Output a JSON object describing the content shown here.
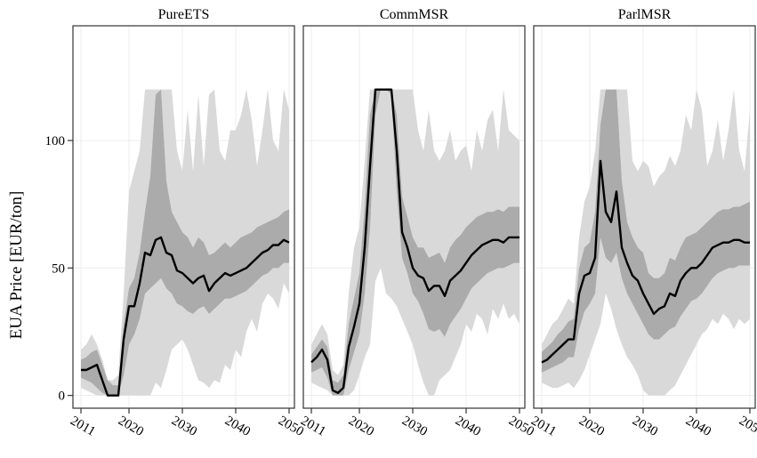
{
  "chart_data": {
    "type": "line",
    "ylabel": "EUA Price [EUR/ton]",
    "ylim": [
      -5,
      145
    ],
    "xlim": [
      2009.5,
      2051
    ],
    "x_ticks": [
      2011,
      2020,
      2030,
      2040,
      2050
    ],
    "y_ticks": [
      0,
      50,
      100
    ],
    "grid": true,
    "colors": {
      "outer_band": "#d9d9d9",
      "inner_band": "#ababab",
      "median": "#000000",
      "frame": "#333333",
      "grid": "#ececec"
    },
    "x": [
      2011,
      2012,
      2013,
      2014,
      2015,
      2016,
      2017,
      2018,
      2019,
      2020,
      2021,
      2022,
      2023,
      2024,
      2025,
      2026,
      2027,
      2028,
      2029,
      2030,
      2031,
      2032,
      2033,
      2034,
      2035,
      2036,
      2037,
      2038,
      2039,
      2040,
      2041,
      2042,
      2043,
      2044,
      2045,
      2046,
      2047,
      2048,
      2049,
      2050
    ],
    "panels": [
      {
        "title": "PureETS",
        "median": [
          10,
          10,
          11,
          12,
          6,
          0,
          0,
          0,
          22,
          35,
          35,
          44,
          56,
          55,
          61,
          62,
          56,
          55,
          49,
          48,
          46,
          44,
          46,
          47,
          41,
          44,
          46,
          48,
          47,
          48,
          49,
          50,
          52,
          54,
          56,
          57,
          59,
          59,
          61,
          60
        ],
        "inner_lo": [
          7,
          6,
          5,
          3,
          1,
          0,
          0,
          0,
          8,
          20,
          24,
          30,
          40,
          42,
          44,
          46,
          42,
          40,
          36,
          35,
          33,
          32,
          34,
          35,
          32,
          34,
          36,
          38,
          38,
          39,
          40,
          41,
          43,
          45,
          47,
          48,
          50,
          50,
          52,
          52
        ],
        "inner_hi": [
          14,
          15,
          17,
          18,
          12,
          6,
          4,
          4,
          28,
          42,
          46,
          56,
          72,
          86,
          118,
          120,
          84,
          72,
          68,
          64,
          62,
          58,
          62,
          60,
          55,
          56,
          58,
          60,
          58,
          60,
          62,
          63,
          64,
          66,
          67,
          68,
          69,
          70,
          72,
          73
        ],
        "outer_lo": [
          3,
          2,
          1,
          0,
          0,
          0,
          0,
          0,
          0,
          0,
          0,
          0,
          0,
          0,
          5,
          3,
          10,
          18,
          20,
          22,
          18,
          12,
          6,
          5,
          3,
          6,
          5,
          12,
          10,
          18,
          15,
          25,
          30,
          25,
          36,
          40,
          38,
          34,
          44,
          40
        ],
        "outer_hi": [
          18,
          20,
          24,
          20,
          14,
          6,
          6,
          8,
          40,
          80,
          88,
          96,
          120,
          120,
          120,
          120,
          120,
          120,
          96,
          88,
          112,
          88,
          118,
          90,
          118,
          120,
          96,
          92,
          104,
          104,
          110,
          120,
          108,
          90,
          104,
          120,
          100,
          96,
          120,
          112
        ]
      },
      {
        "title": "CommMSR",
        "median": [
          13,
          15,
          18,
          14,
          2,
          1,
          3,
          19,
          27,
          36,
          58,
          90,
          120,
          120,
          120,
          120,
          96,
          64,
          58,
          50,
          47,
          46,
          41,
          43,
          43,
          39,
          45,
          47,
          49,
          52,
          55,
          57,
          59,
          60,
          61,
          61,
          60,
          62,
          62,
          62
        ],
        "inner_lo": [
          9,
          10,
          11,
          7,
          0,
          0,
          0,
          10,
          17,
          24,
          40,
          66,
          110,
          120,
          120,
          118,
          80,
          54,
          48,
          40,
          37,
          32,
          26,
          25,
          26,
          23,
          28,
          31,
          34,
          38,
          42,
          44,
          46,
          48,
          49,
          50,
          50,
          51,
          52,
          52
        ],
        "inner_hi": [
          16,
          19,
          22,
          19,
          6,
          5,
          8,
          28,
          38,
          48,
          74,
          110,
          120,
          120,
          120,
          120,
          110,
          78,
          70,
          62,
          58,
          58,
          54,
          55,
          56,
          52,
          58,
          61,
          63,
          66,
          68,
          70,
          71,
          72,
          72,
          73,
          72,
          74,
          74,
          74
        ],
        "outer_lo": [
          5,
          4,
          3,
          2,
          0,
          0,
          0,
          0,
          2,
          8,
          15,
          20,
          45,
          50,
          40,
          38,
          35,
          30,
          25,
          20,
          12,
          5,
          0,
          0,
          6,
          8,
          10,
          15,
          20,
          28,
          25,
          32,
          30,
          24,
          34,
          30,
          36,
          30,
          32,
          28
        ],
        "outer_hi": [
          20,
          24,
          28,
          24,
          10,
          8,
          12,
          40,
          58,
          66,
          92,
          120,
          120,
          120,
          120,
          120,
          120,
          120,
          120,
          120,
          104,
          96,
          112,
          96,
          92,
          96,
          104,
          92,
          96,
          98,
          88,
          104,
          96,
          108,
          112,
          96,
          120,
          104,
          102,
          100
        ]
      },
      {
        "title": "ParlMSR",
        "median": [
          13,
          14,
          16,
          18,
          20,
          22,
          22,
          40,
          47,
          48,
          54,
          92,
          72,
          68,
          80,
          58,
          52,
          47,
          45,
          40,
          36,
          32,
          34,
          35,
          40,
          39,
          45,
          48,
          50,
          50,
          52,
          55,
          58,
          59,
          60,
          60,
          61,
          61,
          60,
          60
        ],
        "inner_lo": [
          9,
          10,
          11,
          12,
          13,
          15,
          15,
          26,
          33,
          36,
          40,
          62,
          54,
          52,
          56,
          46,
          40,
          36,
          32,
          28,
          24,
          22,
          22,
          24,
          26,
          27,
          31,
          34,
          37,
          38,
          40,
          43,
          46,
          48,
          49,
          50,
          50,
          51,
          51,
          51
        ],
        "inner_hi": [
          17,
          19,
          21,
          24,
          26,
          29,
          30,
          50,
          58,
          60,
          72,
          106,
          120,
          120,
          120,
          84,
          68,
          62,
          58,
          56,
          48,
          46,
          46,
          48,
          54,
          53,
          58,
          62,
          63,
          64,
          66,
          68,
          70,
          72,
          73,
          73,
          74,
          74,
          75,
          76
        ],
        "outer_lo": [
          5,
          4,
          3,
          3,
          4,
          5,
          3,
          6,
          10,
          16,
          22,
          28,
          40,
          34,
          26,
          20,
          15,
          12,
          8,
          2,
          0,
          0,
          0,
          0,
          2,
          4,
          8,
          12,
          16,
          20,
          24,
          26,
          30,
          28,
          32,
          30,
          26,
          30,
          28,
          30
        ],
        "outer_hi": [
          20,
          24,
          28,
          30,
          34,
          38,
          36,
          62,
          76,
          82,
          96,
          120,
          120,
          120,
          120,
          120,
          120,
          92,
          88,
          92,
          90,
          82,
          86,
          88,
          94,
          90,
          96,
          110,
          104,
          120,
          112,
          90,
          96,
          108,
          92,
          104,
          120,
          96,
          88,
          112
        ]
      }
    ]
  }
}
